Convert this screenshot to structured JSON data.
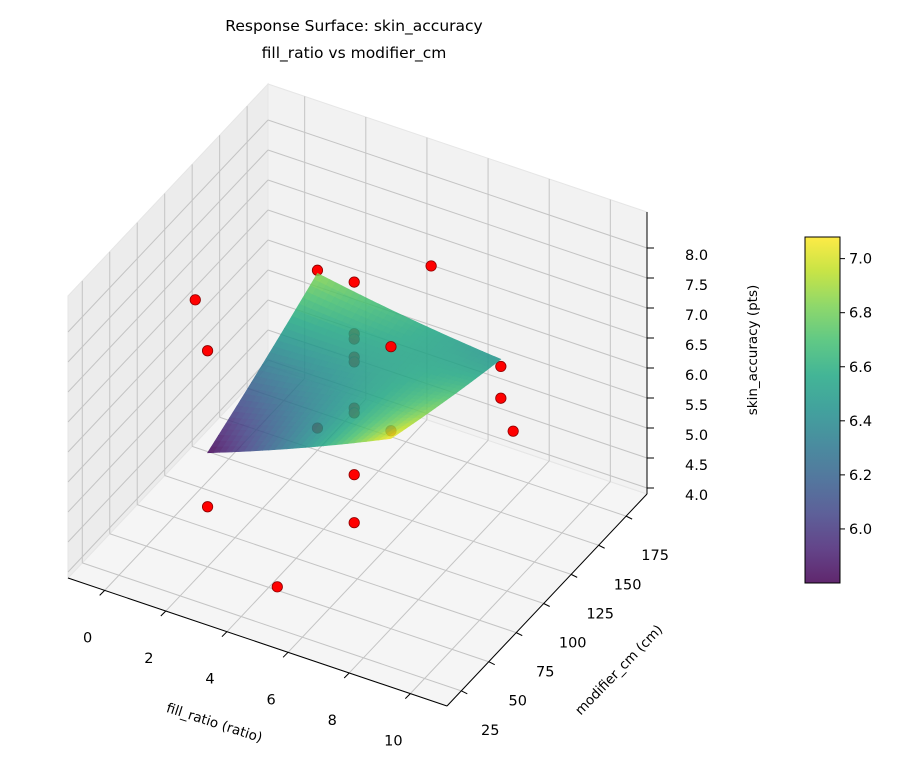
{
  "chart_data": {
    "type": "surface3d",
    "title": "Response Surface: skin_accuracy",
    "subtitle": "fill_ratio vs modifier_cm",
    "xlabel": "fill_ratio (ratio)",
    "ylabel": "modifier_cm (cm)",
    "zlabel": "skin_accuracy (pts)",
    "xlim": [
      -1.2,
      11.2
    ],
    "ylim": [
      12,
      194
    ],
    "zlim": [
      3.9,
      8.6
    ],
    "xticks": [
      "0",
      "2",
      "4",
      "6",
      "8",
      "10"
    ],
    "yticks": [
      "25",
      "50",
      "75",
      "100",
      "125",
      "150",
      "175"
    ],
    "zticks": [
      "4.0",
      "4.5",
      "5.0",
      "5.5",
      "6.0",
      "6.5",
      "7.0",
      "7.5",
      "8.0"
    ],
    "grid": true,
    "surface": {
      "colormap": "viridis",
      "x_range": [
        2,
        8
      ],
      "y_range": [
        50,
        150
      ],
      "corner_z": {
        "xmin_ymin": 5.8,
        "xmax_ymin": 7.07,
        "xmin_ymax": 6.85,
        "xmax_ymax": 6.45
      }
    },
    "colorbar": {
      "clim": [
        5.8,
        7.08
      ],
      "ticks": [
        "6.0",
        "6.2",
        "6.4",
        "6.6",
        "6.8",
        "7.0"
      ]
    },
    "points_color": "#ff0000",
    "points": [
      [
        -0.2,
        100,
        7.0
      ],
      [
        2,
        50,
        7.5
      ],
      [
        2,
        50,
        4.9
      ],
      [
        5,
        30,
        4.47
      ],
      [
        2,
        150,
        6.9
      ],
      [
        2,
        150,
        4.27
      ],
      [
        5,
        100,
        8.19
      ],
      [
        5,
        100,
        7.33
      ],
      [
        5,
        100,
        7.24
      ],
      [
        5,
        100,
        6.94
      ],
      [
        5,
        100,
        6.86
      ],
      [
        5,
        100,
        6.09
      ],
      [
        5,
        100,
        6.01
      ],
      [
        5,
        100,
        4.98
      ],
      [
        5,
        100,
        4.18
      ],
      [
        8,
        50,
        8.6
      ],
      [
        8,
        50,
        7.2
      ],
      [
        5,
        170,
        7.1
      ],
      [
        8,
        150,
        6.33
      ],
      [
        8,
        150,
        5.8
      ],
      [
        10.2,
        100,
        6.6
      ]
    ]
  }
}
